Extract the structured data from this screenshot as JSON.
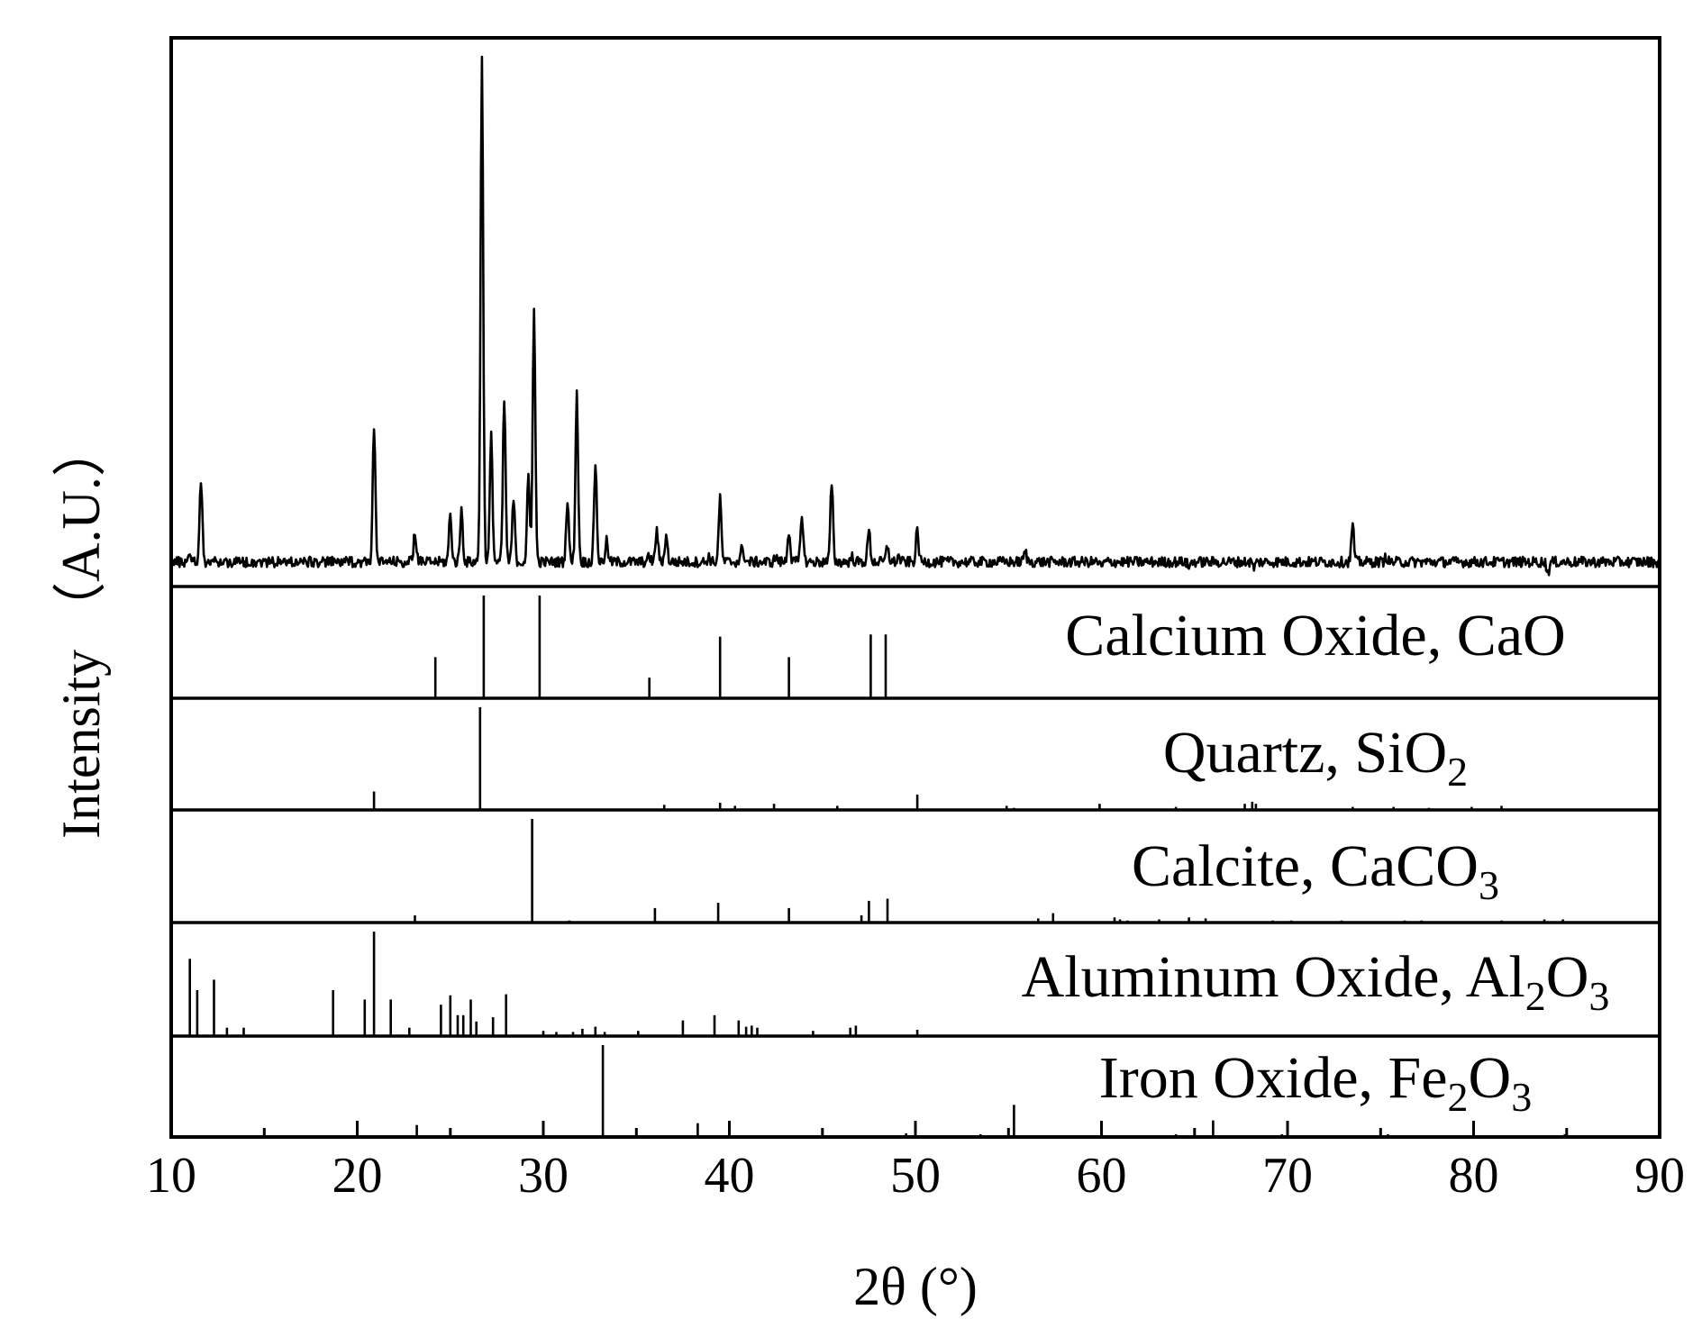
{
  "chart_data": {
    "type": "line",
    "xlabel": "2θ (°)",
    "ylabel": "Intensity （A.U.）",
    "xlim": [
      10,
      90
    ],
    "x_ticks": [
      10,
      20,
      30,
      40,
      50,
      60,
      70,
      80,
      90
    ],
    "x_tick_labels": [
      "10",
      "20",
      "30",
      "40",
      "50",
      "60",
      "70",
      "80",
      "90"
    ],
    "grid": false,
    "measured_pattern": {
      "baseline": 0.04,
      "noise_amplitude": 0.02,
      "peaks": [
        {
          "x": 11.0,
          "y": 0.06
        },
        {
          "x": 11.6,
          "y": 0.2
        },
        {
          "x": 16.4,
          "y": 0.04
        },
        {
          "x": 20.9,
          "y": 0.3
        },
        {
          "x": 23.1,
          "y": 0.1
        },
        {
          "x": 24.2,
          "y": 0.04
        },
        {
          "x": 25.0,
          "y": 0.13
        },
        {
          "x": 25.6,
          "y": 0.14
        },
        {
          "x": 26.7,
          "y": 1.0
        },
        {
          "x": 27.2,
          "y": 0.28
        },
        {
          "x": 27.9,
          "y": 0.35
        },
        {
          "x": 28.4,
          "y": 0.16
        },
        {
          "x": 29.2,
          "y": 0.2
        },
        {
          "x": 29.5,
          "y": 0.52
        },
        {
          "x": 31.3,
          "y": 0.16
        },
        {
          "x": 31.8,
          "y": 0.36
        },
        {
          "x": 32.8,
          "y": 0.23
        },
        {
          "x": 33.4,
          "y": 0.08
        },
        {
          "x": 35.7,
          "y": 0.05
        },
        {
          "x": 36.1,
          "y": 0.1
        },
        {
          "x": 36.6,
          "y": 0.09
        },
        {
          "x": 38.9,
          "y": 0.05
        },
        {
          "x": 39.5,
          "y": 0.16
        },
        {
          "x": 40.7,
          "y": 0.07
        },
        {
          "x": 42.5,
          "y": 0.05
        },
        {
          "x": 43.2,
          "y": 0.1
        },
        {
          "x": 43.9,
          "y": 0.13
        },
        {
          "x": 45.5,
          "y": 0.19
        },
        {
          "x": 46.6,
          "y": 0.05
        },
        {
          "x": 47.5,
          "y": 0.1
        },
        {
          "x": 48.5,
          "y": 0.07
        },
        {
          "x": 49.1,
          "y": 0.05
        },
        {
          "x": 50.1,
          "y": 0.1
        },
        {
          "x": 55.9,
          "y": 0.06
        },
        {
          "x": 57.5,
          "y": 0.04
        },
        {
          "x": 60.0,
          "y": 0.03
        },
        {
          "x": 64.7,
          "y": 0.03
        },
        {
          "x": 68.2,
          "y": 0.03
        },
        {
          "x": 73.5,
          "y": 0.11
        },
        {
          "x": 75.3,
          "y": 0.05
        },
        {
          "x": 84.0,
          "y": 0.02
        }
      ]
    },
    "reference_patterns": [
      {
        "name": "Calcium Oxide, CaO",
        "label_main": "Calcium Oxide, CaO",
        "label_parts": [
          {
            "text": "Calcium Oxide, CaO",
            "sub": false
          }
        ],
        "lines": [
          {
            "x": 24.2,
            "y": 0.4
          },
          {
            "x": 26.8,
            "y": 1.0
          },
          {
            "x": 29.8,
            "y": 1.0
          },
          {
            "x": 35.7,
            "y": 0.2
          },
          {
            "x": 39.5,
            "y": 0.6
          },
          {
            "x": 43.2,
            "y": 0.4
          },
          {
            "x": 47.6,
            "y": 0.62
          },
          {
            "x": 48.4,
            "y": 0.62
          }
        ]
      },
      {
        "name": "Quartz, SiO2",
        "label_parts": [
          {
            "text": "Quartz, SiO",
            "sub": false
          },
          {
            "text": "2",
            "sub": true
          }
        ],
        "lines": [
          {
            "x": 20.9,
            "y": 0.18
          },
          {
            "x": 26.6,
            "y": 1.0
          },
          {
            "x": 36.5,
            "y": 0.05
          },
          {
            "x": 39.5,
            "y": 0.07
          },
          {
            "x": 40.3,
            "y": 0.04
          },
          {
            "x": 42.4,
            "y": 0.06
          },
          {
            "x": 45.8,
            "y": 0.04
          },
          {
            "x": 50.1,
            "y": 0.15
          },
          {
            "x": 54.9,
            "y": 0.04
          },
          {
            "x": 55.3,
            "y": 0.02
          },
          {
            "x": 59.9,
            "y": 0.06
          },
          {
            "x": 64.0,
            "y": 0.03
          },
          {
            "x": 67.7,
            "y": 0.06
          },
          {
            "x": 68.1,
            "y": 0.08
          },
          {
            "x": 68.3,
            "y": 0.06
          },
          {
            "x": 73.5,
            "y": 0.03
          },
          {
            "x": 75.7,
            "y": 0.03
          },
          {
            "x": 77.6,
            "y": 0.02
          },
          {
            "x": 79.9,
            "y": 0.03
          },
          {
            "x": 81.5,
            "y": 0.04
          }
        ]
      },
      {
        "name": "Calcite, CaCO3",
        "label_parts": [
          {
            "text": "Calcite, CaCO",
            "sub": false
          },
          {
            "text": "3",
            "sub": true
          }
        ],
        "lines": [
          {
            "x": 23.1,
            "y": 0.07
          },
          {
            "x": 29.4,
            "y": 1.0
          },
          {
            "x": 31.4,
            "y": 0.02
          },
          {
            "x": 36.0,
            "y": 0.14
          },
          {
            "x": 39.4,
            "y": 0.19
          },
          {
            "x": 43.2,
            "y": 0.14
          },
          {
            "x": 47.1,
            "y": 0.07
          },
          {
            "x": 47.5,
            "y": 0.21
          },
          {
            "x": 48.5,
            "y": 0.23
          },
          {
            "x": 56.6,
            "y": 0.04
          },
          {
            "x": 57.4,
            "y": 0.09
          },
          {
            "x": 60.7,
            "y": 0.05
          },
          {
            "x": 61.0,
            "y": 0.03
          },
          {
            "x": 61.4,
            "y": 0.02
          },
          {
            "x": 63.1,
            "y": 0.03
          },
          {
            "x": 64.7,
            "y": 0.05
          },
          {
            "x": 65.6,
            "y": 0.04
          },
          {
            "x": 69.2,
            "y": 0.02
          },
          {
            "x": 70.2,
            "y": 0.02
          },
          {
            "x": 72.9,
            "y": 0.02
          },
          {
            "x": 76.3,
            "y": 0.02
          },
          {
            "x": 77.2,
            "y": 0.02
          },
          {
            "x": 81.5,
            "y": 0.02
          },
          {
            "x": 83.8,
            "y": 0.03
          },
          {
            "x": 84.8,
            "y": 0.03
          }
        ]
      },
      {
        "name": "Aluminum Oxide, Al2O3",
        "label_parts": [
          {
            "text": "Aluminum Oxide, Al",
            "sub": false
          },
          {
            "text": "2",
            "sub": true
          },
          {
            "text": "O",
            "sub": false
          },
          {
            "text": "3",
            "sub": true
          }
        ],
        "lines": [
          {
            "x": 11.0,
            "y": 0.74
          },
          {
            "x": 11.4,
            "y": 0.44
          },
          {
            "x": 12.3,
            "y": 0.54
          },
          {
            "x": 13.0,
            "y": 0.08
          },
          {
            "x": 13.9,
            "y": 0.08
          },
          {
            "x": 18.7,
            "y": 0.44
          },
          {
            "x": 20.4,
            "y": 0.35
          },
          {
            "x": 20.9,
            "y": 1.0
          },
          {
            "x": 21.8,
            "y": 0.35
          },
          {
            "x": 22.8,
            "y": 0.08
          },
          {
            "x": 24.5,
            "y": 0.3
          },
          {
            "x": 25.0,
            "y": 0.39
          },
          {
            "x": 25.4,
            "y": 0.2
          },
          {
            "x": 25.7,
            "y": 0.2
          },
          {
            "x": 26.1,
            "y": 0.35
          },
          {
            "x": 26.4,
            "y": 0.14
          },
          {
            "x": 27.3,
            "y": 0.18
          },
          {
            "x": 28.0,
            "y": 0.4
          },
          {
            "x": 30.0,
            "y": 0.05
          },
          {
            "x": 30.7,
            "y": 0.04
          },
          {
            "x": 31.6,
            "y": 0.04
          },
          {
            "x": 32.1,
            "y": 0.07
          },
          {
            "x": 32.8,
            "y": 0.09
          },
          {
            "x": 33.3,
            "y": 0.04
          },
          {
            "x": 35.1,
            "y": 0.05
          },
          {
            "x": 37.5,
            "y": 0.15
          },
          {
            "x": 39.2,
            "y": 0.2
          },
          {
            "x": 40.5,
            "y": 0.15
          },
          {
            "x": 40.9,
            "y": 0.09
          },
          {
            "x": 41.2,
            "y": 0.1
          },
          {
            "x": 41.5,
            "y": 0.08
          },
          {
            "x": 44.5,
            "y": 0.05
          },
          {
            "x": 46.5,
            "y": 0.08
          },
          {
            "x": 46.8,
            "y": 0.1
          },
          {
            "x": 50.1,
            "y": 0.06
          }
        ]
      },
      {
        "name": "Iron Oxide, Fe2O3",
        "label_parts": [
          {
            "text": "Iron Oxide, Fe",
            "sub": false
          },
          {
            "text": "2",
            "sub": true
          },
          {
            "text": "O",
            "sub": false
          },
          {
            "text": "3",
            "sub": true
          }
        ],
        "lines": [
          {
            "x": 23.2,
            "y": 0.13
          },
          {
            "x": 33.2,
            "y": 1.0
          },
          {
            "x": 38.3,
            "y": 0.15
          },
          {
            "x": 41.0,
            "y": 0.02
          },
          {
            "x": 43.6,
            "y": 0.02
          },
          {
            "x": 45.2,
            "y": 0.02
          },
          {
            "x": 47.3,
            "y": 0.02
          },
          {
            "x": 49.5,
            "y": 0.04
          },
          {
            "x": 53.5,
            "y": 0.03
          },
          {
            "x": 55.3,
            "y": 0.35
          },
          {
            "x": 57.6,
            "y": 0.02
          },
          {
            "x": 62.5,
            "y": 0.02
          },
          {
            "x": 64.0,
            "y": 0.03
          },
          {
            "x": 66.0,
            "y": 0.18
          },
          {
            "x": 69.7,
            "y": 0.03
          },
          {
            "x": 72.0,
            "y": 0.02
          },
          {
            "x": 75.4,
            "y": 0.03
          },
          {
            "x": 77.7,
            "y": 0.02
          },
          {
            "x": 82.9,
            "y": 0.02
          },
          {
            "x": 84.9,
            "y": 0.03
          },
          {
            "x": 88.5,
            "y": 0.02
          }
        ]
      }
    ]
  }
}
